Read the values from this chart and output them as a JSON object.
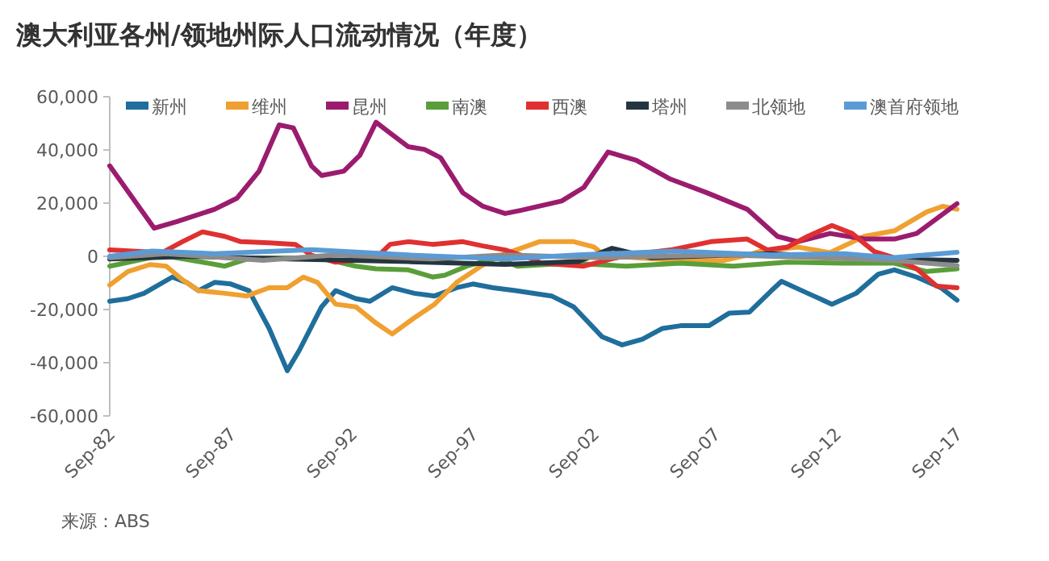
{
  "chart_data": {
    "type": "line",
    "title": "澳大利亚各州/领地州际人口流动情况（年度）",
    "annotations": [
      "来源：ABS"
    ],
    "legend": "top",
    "grid": false,
    "marker": "none",
    "line_style": "solid",
    "xlim": [
      "1982-09",
      "2017-09"
    ],
    "ylim": [
      -60000,
      60000
    ],
    "xticks": [
      {
        "value": "1982-09",
        "label": "Sep-82"
      },
      {
        "value": "1987-09",
        "label": "Sep-87"
      },
      {
        "value": "1992-09",
        "label": "Sep-92"
      },
      {
        "value": "1997-09",
        "label": "Sep-97"
      },
      {
        "value": "2002-09",
        "label": "Sep-02"
      },
      {
        "value": "2007-09",
        "label": "Sep-07"
      },
      {
        "value": "2012-09",
        "label": "Sep-12"
      },
      {
        "value": "2017-09",
        "label": "Sep-17"
      }
    ],
    "yticks": [
      {
        "value": 60000,
        "label": "60,000"
      },
      {
        "value": 40000,
        "label": "40,000"
      },
      {
        "value": 20000,
        "label": "20,000"
      },
      0,
      {
        "value": -20000,
        "label": "-20,000"
      },
      {
        "value": -40000,
        "label": "-40,000"
      },
      {
        "value": -60000,
        "label": "-60,000"
      }
    ],
    "series": [
      {
        "name": "新州",
        "color": "#1f6e9c",
        "x": [
          "1982-09",
          "1983-06",
          "1984-02",
          "1985-04",
          "1985-11",
          "1986-05",
          "1987-01",
          "1987-09",
          "1988-06",
          "1989-04",
          "1990-01",
          "1990-07",
          "1991-06",
          "1992-01",
          "1992-11",
          "1993-06",
          "1994-05",
          "1995-04",
          "1996-02",
          "1997-01",
          "1997-09",
          "1998-07",
          "1999-06",
          "2000-12",
          "2001-11",
          "2003-01",
          "2003-11",
          "2004-09",
          "2005-07",
          "2006-04",
          "2007-06",
          "2008-04",
          "2009-02",
          "2010-01",
          "2010-06",
          "2011-07",
          "2012-07",
          "2013-07",
          "2014-06",
          "2015-02",
          "2016-01",
          "2017-01",
          "2017-09"
        ],
        "values": [
          -16900,
          -15900,
          -13900,
          -7800,
          -9800,
          -12900,
          -9800,
          -10400,
          -12900,
          -27100,
          -43000,
          -35300,
          -19000,
          -12900,
          -15900,
          -16900,
          -11800,
          -13900,
          -14900,
          -11800,
          -10400,
          -11800,
          -12900,
          -14900,
          -19000,
          -30200,
          -33300,
          -31200,
          -27100,
          -26100,
          -26100,
          -21400,
          -21000,
          -12900,
          -9400,
          -13900,
          -18000,
          -13900,
          -6700,
          -5100,
          -7800,
          -11800,
          -16500
        ]
      },
      {
        "name": "维州",
        "color": "#f0a030",
        "x": [
          "1982-09",
          "1983-06",
          "1984-05",
          "1985-01",
          "1985-09",
          "1986-05",
          "1987-06",
          "1988-05",
          "1989-04",
          "1990-01",
          "1990-09",
          "1991-04",
          "1992-01",
          "1992-11",
          "1993-09",
          "1994-05",
          "1995-04",
          "1996-02",
          "1997-01",
          "1998-01",
          "1998-11",
          "2000-06",
          "2001-11",
          "2002-09",
          "2003-02",
          "2004-06",
          "2006-04",
          "2008-01",
          "2009-01",
          "2009-07",
          "2011-02",
          "2012-06",
          "2013-11",
          "2015-02",
          "2016-06",
          "2017-02",
          "2017-09"
        ],
        "values": [
          -10800,
          -5700,
          -3100,
          -3700,
          -8800,
          -12900,
          -13900,
          -14900,
          -11800,
          -11800,
          -7800,
          -9800,
          -18000,
          -19000,
          -25100,
          -29200,
          -23100,
          -18000,
          -9800,
          -3700,
          400,
          5500,
          5500,
          3500,
          400,
          -500,
          -1600,
          -1600,
          400,
          1800,
          3500,
          1400,
          7500,
          9600,
          16700,
          18800,
          17700
        ]
      },
      {
        "name": "昆州",
        "color": "#9b1c6e",
        "x": [
          "1982-09",
          "1984-07",
          "1985-06",
          "1987-01",
          "1987-12",
          "1988-11",
          "1989-09",
          "1990-04",
          "1991-01",
          "1991-06",
          "1992-05",
          "1993-01",
          "1993-09",
          "1994-04",
          "1995-01",
          "1995-09",
          "1996-05",
          "1997-04",
          "1998-02",
          "1999-01",
          "1999-09",
          "2001-05",
          "2002-04",
          "2003-04",
          "2004-06",
          "2005-11",
          "2007-05",
          "2009-01",
          "2010-04",
          "2011-02",
          "2012-06",
          "2013-11",
          "2015-02",
          "2016-01",
          "2017-09"
        ],
        "values": [
          34000,
          10600,
          13000,
          17700,
          21800,
          32000,
          49400,
          48300,
          34000,
          30400,
          32000,
          38000,
          50400,
          46300,
          41200,
          40200,
          37100,
          23900,
          18800,
          16100,
          17300,
          20800,
          25900,
          39200,
          36100,
          29000,
          23900,
          17700,
          7500,
          5500,
          8600,
          6500,
          6500,
          8600,
          19800
        ]
      },
      {
        "name": "南澳",
        "color": "#5a9e3a",
        "x": [
          "1982-09",
          "1984-11",
          "1986-07",
          "1987-06",
          "1988-07",
          "1991-06",
          "1992-11",
          "1993-09",
          "1995-01",
          "1996-01",
          "1996-07",
          "1997-06",
          "1998-09",
          "1999-07",
          "2001-09",
          "2004-01",
          "2006-04",
          "2008-06",
          "2010-09",
          "2013-01",
          "2015-02",
          "2016-06",
          "2017-09"
        ],
        "values": [
          -3700,
          400,
          -2200,
          -3700,
          -600,
          -600,
          -3700,
          -4700,
          -5100,
          -7800,
          -7100,
          -3700,
          -600,
          -3700,
          -2600,
          -3700,
          -2600,
          -3700,
          -2200,
          -2600,
          -2600,
          -5700,
          -4700
        ]
      },
      {
        "name": "西澳",
        "color": "#e03030",
        "x": [
          "1982-09",
          "1984-11",
          "1985-09",
          "1986-07",
          "1987-06",
          "1988-02",
          "1989-04",
          "1990-05",
          "1991-01",
          "1992-01",
          "1993-09",
          "1994-04",
          "1995-01",
          "1996-01",
          "1997-04",
          "1998-02",
          "1999-01",
          "2000-01",
          "2000-07",
          "2002-04",
          "2004-01",
          "2005-11",
          "2007-07",
          "2009-01",
          "2009-11",
          "2010-09",
          "2011-07",
          "2012-07",
          "2013-05",
          "2014-04",
          "2015-02",
          "2016-01",
          "2016-11",
          "2017-09"
        ],
        "values": [
          2400,
          1400,
          5500,
          9200,
          7500,
          5500,
          5100,
          4500,
          400,
          -2200,
          -600,
          4500,
          5500,
          4500,
          5500,
          3900,
          2400,
          -600,
          -2600,
          -3700,
          400,
          2400,
          5500,
          6500,
          2400,
          3500,
          7500,
          11600,
          8600,
          1800,
          -600,
          -4700,
          -11200,
          -11800
        ]
      },
      {
        "name": "塔州",
        "color": "#253540",
        "x": [
          "1982-09",
          "1986-01",
          "1990-01",
          "1995-01",
          "1999-01",
          "2002-01",
          "2003-06",
          "2005-01",
          "2010-01",
          "2014-01",
          "2017-09"
        ],
        "values": [
          -1000,
          0,
          -1000,
          -2000,
          -3000,
          -2000,
          3000,
          -500,
          1000,
          -1000,
          -1500
        ]
      },
      {
        "name": "北领地",
        "color": "#8c8c8c",
        "x": [
          "1982-09",
          "1985-01",
          "1989-01",
          "1992-01",
          "1996-01",
          "1999-01",
          "2003-01",
          "2008-01",
          "2012-01",
          "2015-01",
          "2017-09"
        ],
        "values": [
          -500,
          1000,
          -1500,
          500,
          -1000,
          500,
          -500,
          500,
          -500,
          -1500,
          -3500
        ]
      },
      {
        "name": "澳首府领地",
        "color": "#5b9bd5",
        "x": [
          "1982-09",
          "1984-06",
          "1987-01",
          "1991-01",
          "1995-01",
          "1999-01",
          "2002-01",
          "2006-01",
          "2010-01",
          "2013-01",
          "2015-01",
          "2017-09"
        ],
        "values": [
          0,
          2000,
          1000,
          2500,
          500,
          -1000,
          500,
          2000,
          500,
          1000,
          -500,
          1500
        ]
      }
    ]
  }
}
